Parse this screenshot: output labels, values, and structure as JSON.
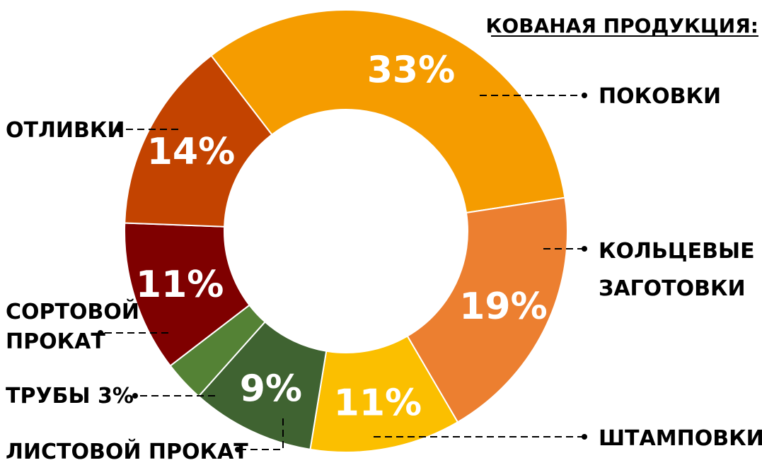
{
  "chart_data": {
    "type": "pie",
    "style": "donut",
    "title": "КОВАНАЯ ПРОДУКЦИЯ:",
    "slices": [
      {
        "label": "ПОКОВКИ",
        "value": 33,
        "value_label": "33%",
        "color": "#F59C00"
      },
      {
        "label": "КОЛЬЦЕВЫЕ ЗАГОТОВКИ",
        "label_lines": [
          "КОЛЬЦЕВЫЕ",
          "ЗАГОТОВКИ"
        ],
        "value": 19,
        "value_label": "19%",
        "color": "#EC7F30"
      },
      {
        "label": "ШТАМПОВКИ",
        "value": 11,
        "value_label": "11%",
        "color": "#FBBF00"
      },
      {
        "label": "ЛИСТОВОЙ ПРОКАТ",
        "value": 9,
        "value_label": "9%",
        "color": "#3F6331"
      },
      {
        "label": "ТРУБЫ 3%",
        "value": 3,
        "value_label": "",
        "color": "#548235"
      },
      {
        "label": "СОРТОВОЙ ПРОКАТ",
        "label_lines": [
          "СОРТОВОЙ",
          "ПРОКАТ"
        ],
        "value": 11,
        "value_label": "11%",
        "color": "#7F0000"
      },
      {
        "label": "ОТЛИВКИ",
        "value": 14,
        "value_label": "14%",
        "color": "#C34300"
      }
    ]
  }
}
